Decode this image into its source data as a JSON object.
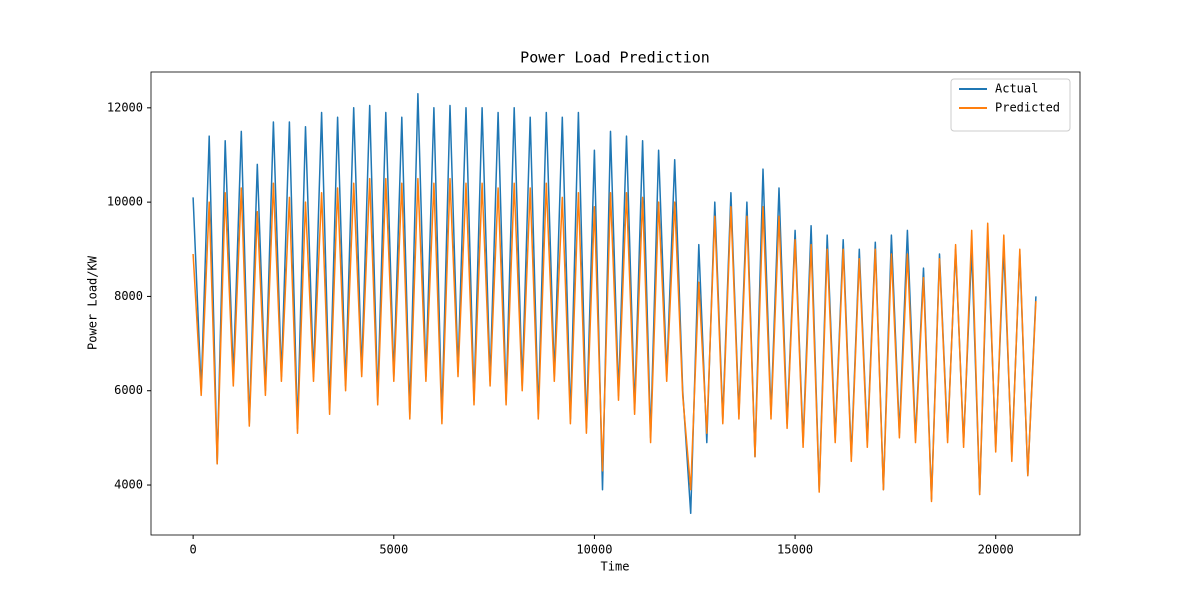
{
  "chart_data": {
    "type": "line",
    "title": "Power Load Prediction",
    "x_label": "Time",
    "y_label": "Power Load/KW",
    "x": [
      0,
      200,
      400,
      600,
      800,
      1000,
      1200,
      1400,
      1600,
      1800,
      2000,
      2200,
      2400,
      2600,
      2800,
      3000,
      3200,
      3400,
      3600,
      3800,
      4000,
      4200,
      4400,
      4600,
      4800,
      5000,
      5200,
      5400,
      5600,
      5800,
      6000,
      6200,
      6400,
      6600,
      6800,
      7000,
      7200,
      7400,
      7600,
      7800,
      8000,
      8200,
      8400,
      8600,
      8800,
      9000,
      9200,
      9400,
      9600,
      9800,
      10000,
      10200,
      10400,
      10600,
      10800,
      11000,
      11200,
      11400,
      11600,
      11800,
      12000,
      12200,
      12400,
      12600,
      12800,
      13000,
      13200,
      13400,
      13600,
      13800,
      14000,
      14200,
      14400,
      14600,
      14800,
      15000,
      15200,
      15400,
      15600,
      15800,
      16000,
      16200,
      16400,
      16600,
      16800,
      17000,
      17200,
      17400,
      17600,
      17800,
      18000,
      18200,
      18400,
      18600,
      18800,
      19000,
      19200,
      19400,
      19600,
      19800,
      20000,
      20200,
      20400,
      20600,
      20800,
      21000
    ],
    "series": [
      {
        "name": "Actual",
        "color": "#1f77b4",
        "values": [
          10100,
          6000,
          11400,
          4450,
          11300,
          6300,
          11500,
          5300,
          10800,
          6000,
          11700,
          6300,
          11700,
          5200,
          11600,
          6300,
          11900,
          5600,
          11800,
          6100,
          12000,
          6400,
          12050,
          5800,
          11900,
          6300,
          11800,
          5500,
          12300,
          6300,
          12000,
          5400,
          12050,
          6400,
          12000,
          5800,
          12000,
          6200,
          11900,
          5800,
          12000,
          6100,
          11800,
          5500,
          11900,
          6300,
          11800,
          5400,
          11900,
          5200,
          11100,
          3900,
          11500,
          5900,
          11400,
          5600,
          11300,
          5000,
          11100,
          6300,
          10900,
          6000,
          3400,
          9100,
          4900,
          10000,
          5400,
          10200,
          5500,
          10000,
          4600,
          10700,
          5500,
          10300,
          5300,
          9400,
          4900,
          9500,
          3900,
          9300,
          5000,
          9200,
          4600,
          9000,
          4900,
          9150,
          3900,
          9300,
          5100,
          9400,
          5000,
          8600,
          3700,
          8900,
          5000,
          9000,
          4900,
          9000,
          3800,
          9300,
          4800,
          9000,
          4600,
          8900,
          4200,
          8000
        ]
      },
      {
        "name": "Predicted",
        "color": "#ff7f0e",
        "values": [
          8900,
          5900,
          10000,
          4450,
          10200,
          6100,
          10300,
          5250,
          9800,
          5900,
          10400,
          6200,
          10100,
          5100,
          10000,
          6200,
          10200,
          5500,
          10300,
          6000,
          10400,
          6300,
          10500,
          5700,
          10500,
          6200,
          10400,
          5400,
          10500,
          6200,
          10400,
          5300,
          10500,
          6300,
          10400,
          5700,
          10400,
          6100,
          10300,
          5700,
          10400,
          6000,
          10300,
          5400,
          10400,
          6200,
          10100,
          5300,
          10200,
          5100,
          9900,
          4300,
          10200,
          5800,
          10200,
          5500,
          10100,
          4900,
          10000,
          6200,
          10000,
          5900,
          3900,
          8300,
          5100,
          9700,
          5300,
          9900,
          5400,
          9700,
          4600,
          9900,
          5400,
          9700,
          5200,
          9200,
          4800,
          9100,
          3850,
          9000,
          4900,
          9000,
          4500,
          8800,
          4800,
          9000,
          3900,
          8900,
          5000,
          8900,
          4900,
          8400,
          3650,
          8800,
          4900,
          9100,
          4800,
          9400,
          3800,
          9550,
          4700,
          9300,
          4500,
          9000,
          4200,
          7900
        ]
      }
    ],
    "xlim": [
      -1050,
      22100
    ],
    "ylim": [
      2940,
      12760
    ],
    "xticks": [
      0,
      5000,
      10000,
      15000,
      20000
    ],
    "yticks": [
      4000,
      6000,
      8000,
      10000,
      12000
    ],
    "legend": "upper right"
  }
}
